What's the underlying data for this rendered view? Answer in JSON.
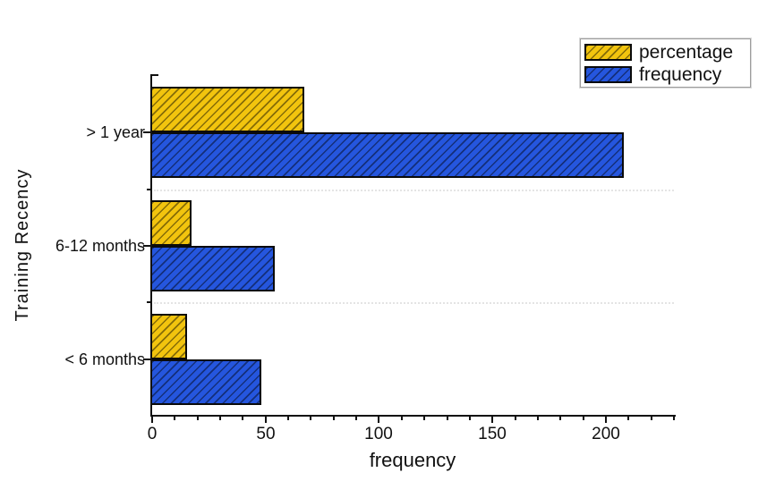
{
  "chart_data": {
    "type": "bar",
    "orientation": "horizontal",
    "title": "",
    "xlabel": "frequency",
    "ylabel": "Training Recency",
    "categories": [
      "> 1 year",
      "6-12 months",
      "< 6 months"
    ],
    "series": [
      {
        "name": "percentage",
        "color": "#F2C40E",
        "hatch": "/",
        "values": [
          67.1,
          17.4,
          15.5
        ]
      },
      {
        "name": "frequency",
        "color": "#2556DE",
        "hatch": "/",
        "values": [
          208,
          54,
          48
        ]
      }
    ],
    "xlim": [
      0,
      230
    ],
    "xticks": [
      0,
      50,
      100,
      150,
      200
    ],
    "minor_tick_step": 10,
    "grid": "dotted horizontal lines between categories",
    "legend_position": "top-right",
    "legend_entries": [
      "percentage",
      "frequency"
    ]
  },
  "colors": {
    "background": "#ffffff",
    "axis": "#111111",
    "bar_edge": "#0b0b0b",
    "gridline": "#e4e4e4",
    "legend_border": "#9d9d9d",
    "text": "#111111"
  }
}
